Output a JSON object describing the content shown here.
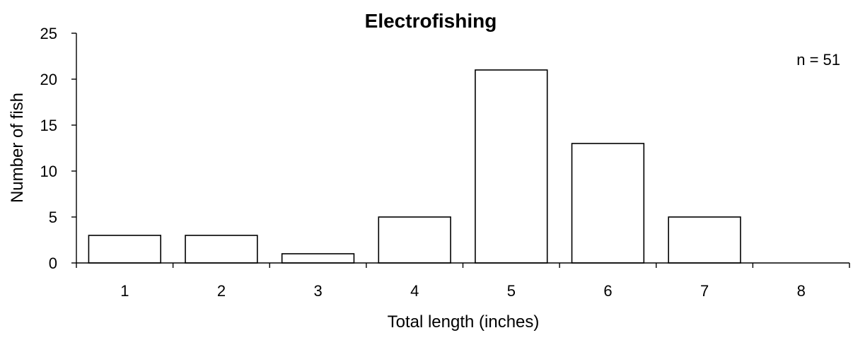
{
  "chart_data": {
    "type": "bar",
    "title": "Electrofishing",
    "xlabel": "Total length (inches)",
    "ylabel": "Number of fish",
    "categories": [
      "1",
      "2",
      "3",
      "4",
      "5",
      "6",
      "7",
      "8"
    ],
    "values": [
      3,
      3,
      1,
      5,
      21,
      13,
      5,
      0
    ],
    "ylim": [
      0,
      25
    ],
    "yticks": [
      "0",
      "5",
      "10",
      "15",
      "20",
      "25"
    ],
    "annotation": "n = 51",
    "grid": false,
    "legend": "none",
    "colors": {
      "bar_fill": "#ffffff",
      "bar_stroke": "#000000"
    }
  }
}
